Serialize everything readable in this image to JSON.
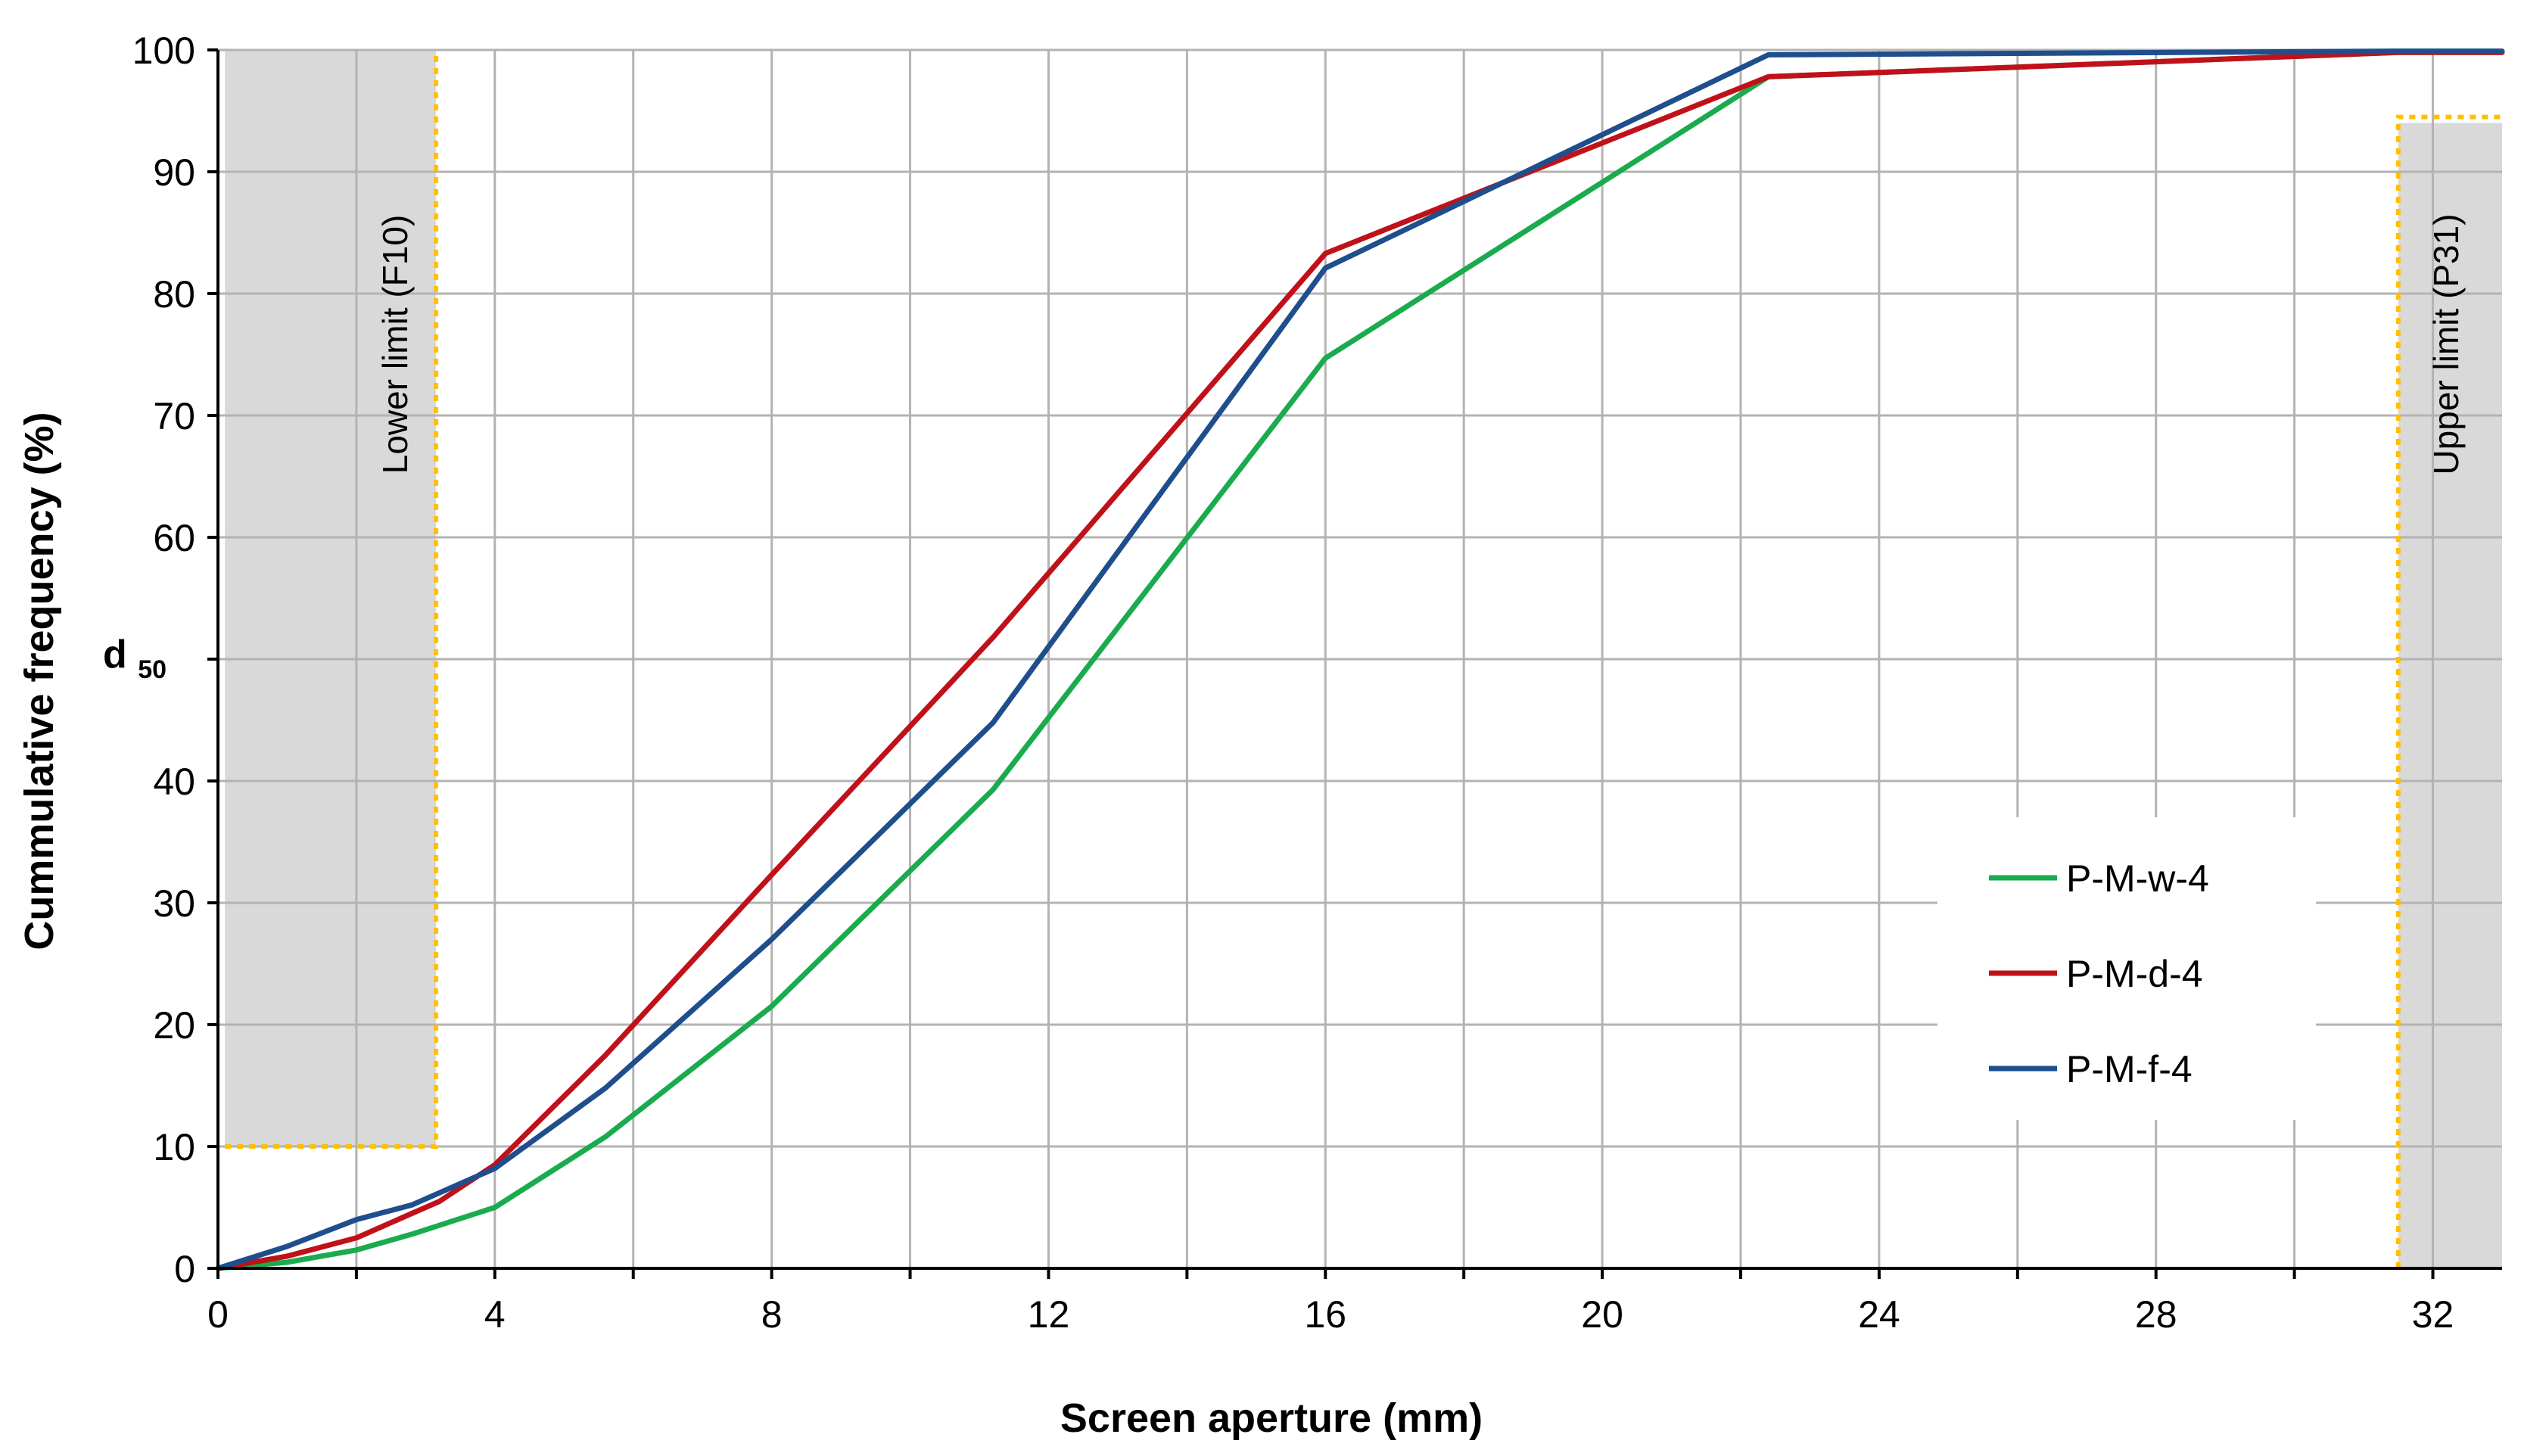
{
  "chart_data": {
    "type": "line",
    "title": "",
    "xlabel": "Screen aperture (mm)",
    "ylabel": "Cummulative frequency (%)",
    "xlim": [
      0,
      33
    ],
    "ylim": [
      0,
      100
    ],
    "x_ticks": [
      0,
      4,
      8,
      12,
      16,
      20,
      24,
      28,
      32
    ],
    "y_ticks": [
      0,
      10,
      20,
      30,
      40,
      50,
      60,
      70,
      80,
      90,
      100
    ],
    "y_tick_labels": [
      "0",
      "10",
      "20",
      "30",
      "40",
      "",
      "60",
      "70",
      "80",
      "90",
      "100"
    ],
    "d50_label": {
      "main": "d",
      "sub": "50"
    },
    "grid": true,
    "legend_position": "bottom-right",
    "series": [
      {
        "name": "P-M-w-4",
        "color": "#1aab4e",
        "points": [
          [
            0,
            0
          ],
          [
            1,
            0.5
          ],
          [
            2,
            1.5
          ],
          [
            2.8,
            2.8
          ],
          [
            4,
            5
          ],
          [
            5.6,
            10.8
          ],
          [
            8,
            21.5
          ],
          [
            11.2,
            39.3
          ],
          [
            16,
            74.7
          ],
          [
            22.4,
            97.8
          ],
          [
            31.5,
            99.8
          ],
          [
            33,
            99.8
          ]
        ]
      },
      {
        "name": "P-M-d-4",
        "color": "#c0111a",
        "points": [
          [
            0,
            0
          ],
          [
            1,
            1
          ],
          [
            2,
            2.5
          ],
          [
            2.8,
            4.5
          ],
          [
            3.2,
            5.5
          ],
          [
            4,
            8.5
          ],
          [
            5.6,
            17.5
          ],
          [
            8,
            32.3
          ],
          [
            11.2,
            51.8
          ],
          [
            16,
            83.3
          ],
          [
            22.4,
            97.8
          ],
          [
            31.5,
            99.8
          ],
          [
            33,
            99.8
          ]
        ]
      },
      {
        "name": "P-M-f-4",
        "color": "#1f4e8c",
        "points": [
          [
            0,
            0
          ],
          [
            1,
            1.8
          ],
          [
            2,
            4
          ],
          [
            2.8,
            5.2
          ],
          [
            4,
            8.2
          ],
          [
            5.6,
            14.8
          ],
          [
            8,
            27
          ],
          [
            11.2,
            44.8
          ],
          [
            16,
            82.1
          ],
          [
            22.4,
            99.6
          ],
          [
            31.5,
            99.9
          ],
          [
            33,
            99.9
          ]
        ]
      }
    ],
    "regions": [
      {
        "name": "Lower limit (F10)",
        "x_range": [
          0.1,
          3.15
        ],
        "y_range": [
          10,
          100
        ]
      },
      {
        "name": "Upper limit (P31)",
        "x_range": [
          31.5,
          33
        ],
        "y_range": [
          0,
          94
        ]
      }
    ],
    "region_fill": "#d9d9d9",
    "limit_line_color": "#ffc000"
  }
}
